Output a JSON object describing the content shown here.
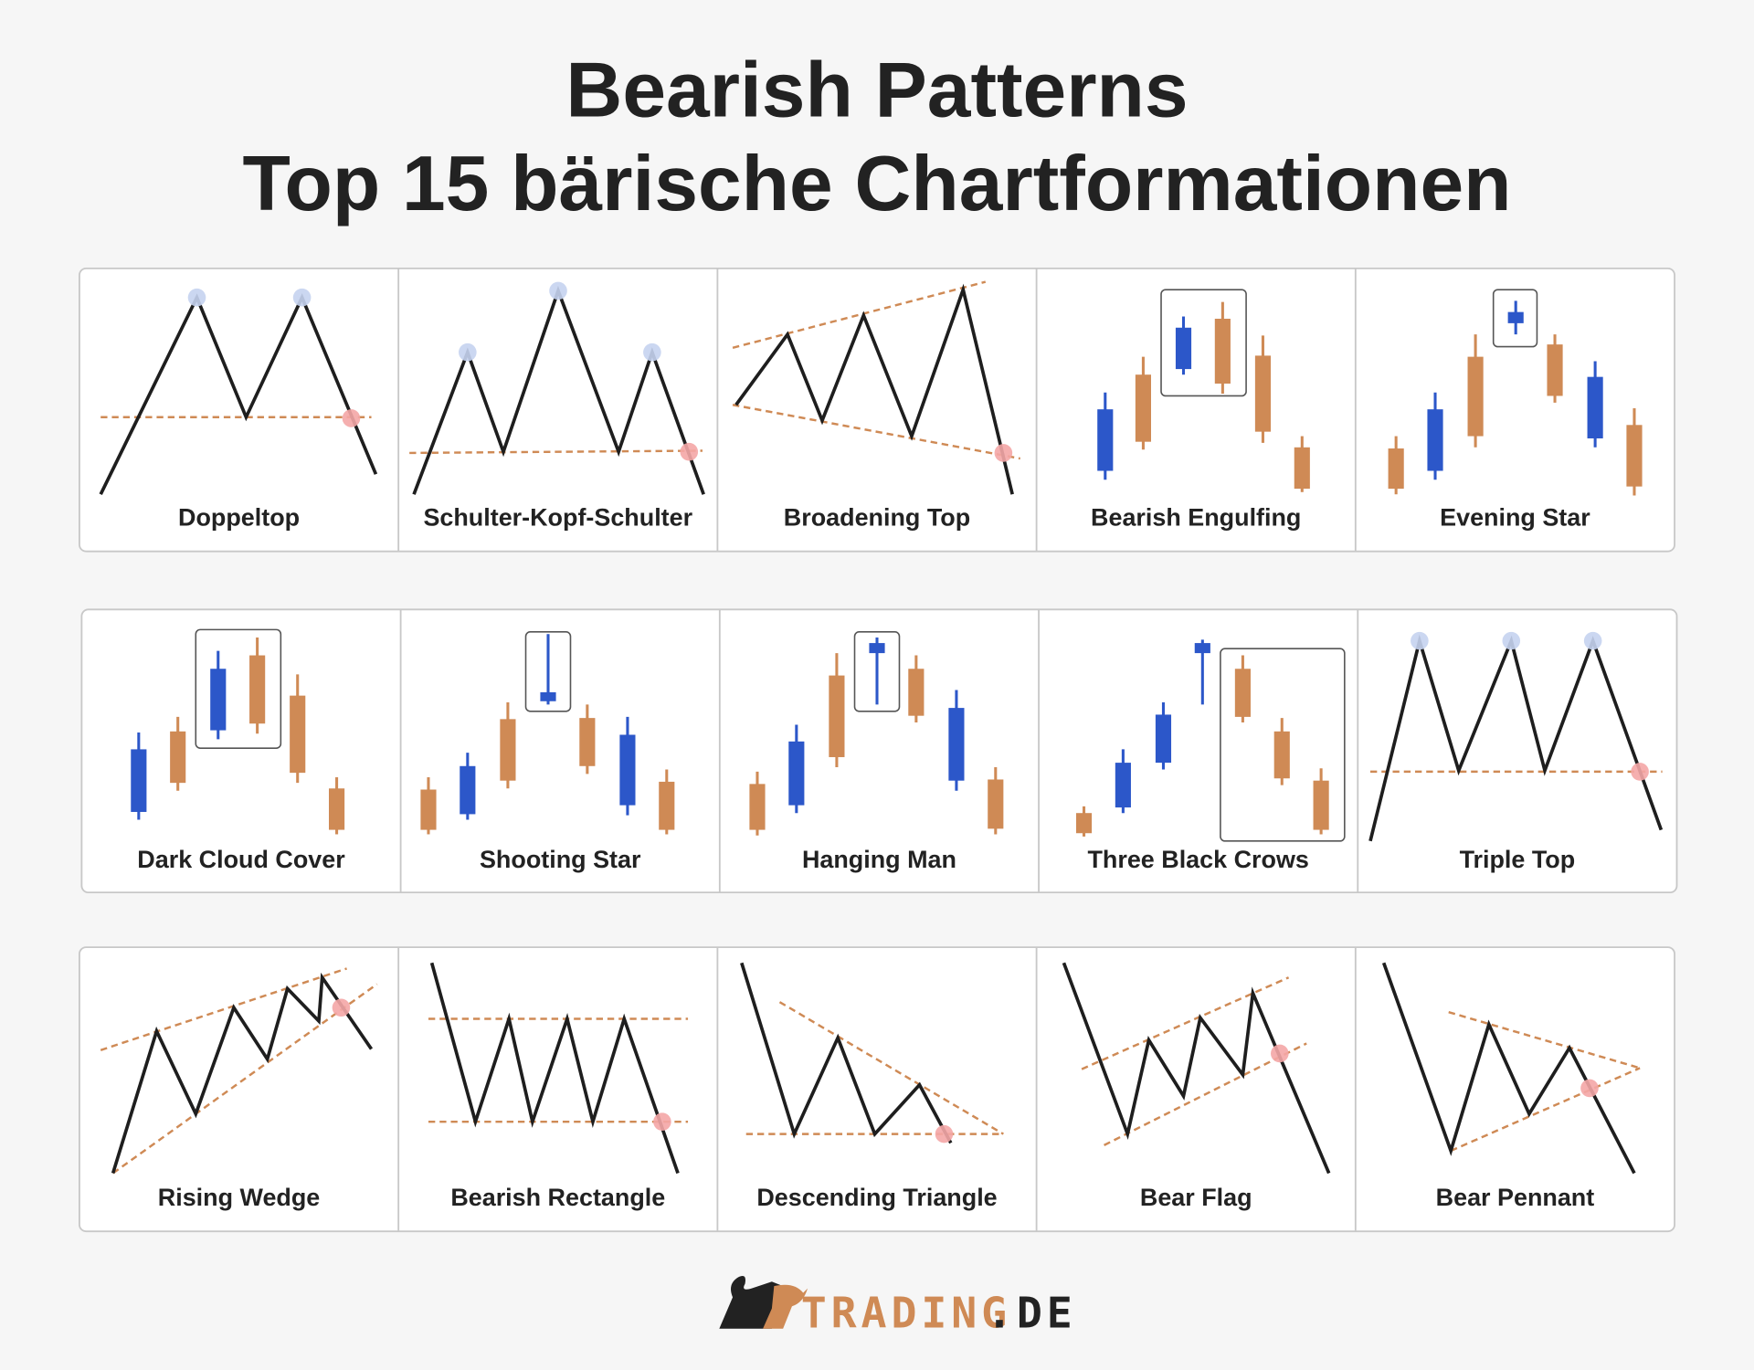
{
  "title": {
    "line1": "Bearish Patterns",
    "line2": "Top 15 bärische Chartformationen"
  },
  "colors": {
    "bull": "#2c57c9",
    "bear": "#cf8a55",
    "line": "#1e1e1e",
    "peak_marker": "#c5d3ef",
    "break_marker": "#f4a6a6",
    "border": "#c8c8c8",
    "background": "#f6f6f6"
  },
  "patterns": [
    {
      "name": "Doppeltop"
    },
    {
      "name": "Schulter-Kopf-Schulter"
    },
    {
      "name": "Broadening Top"
    },
    {
      "name": "Bearish Engulfing"
    },
    {
      "name": "Evening Star"
    },
    {
      "name": "Dark Cloud Cover"
    },
    {
      "name": "Shooting Star"
    },
    {
      "name": "Hanging Man"
    },
    {
      "name": "Three Black Crows"
    },
    {
      "name": "Triple Top"
    },
    {
      "name": "Rising Wedge"
    },
    {
      "name": "Bearish Rectangle"
    },
    {
      "name": "Descending Triangle"
    },
    {
      "name": "Bear Flag"
    },
    {
      "name": "Bear Pennant"
    }
  ],
  "logo": {
    "brand": "TRADING",
    "suffix": ".DE"
  }
}
